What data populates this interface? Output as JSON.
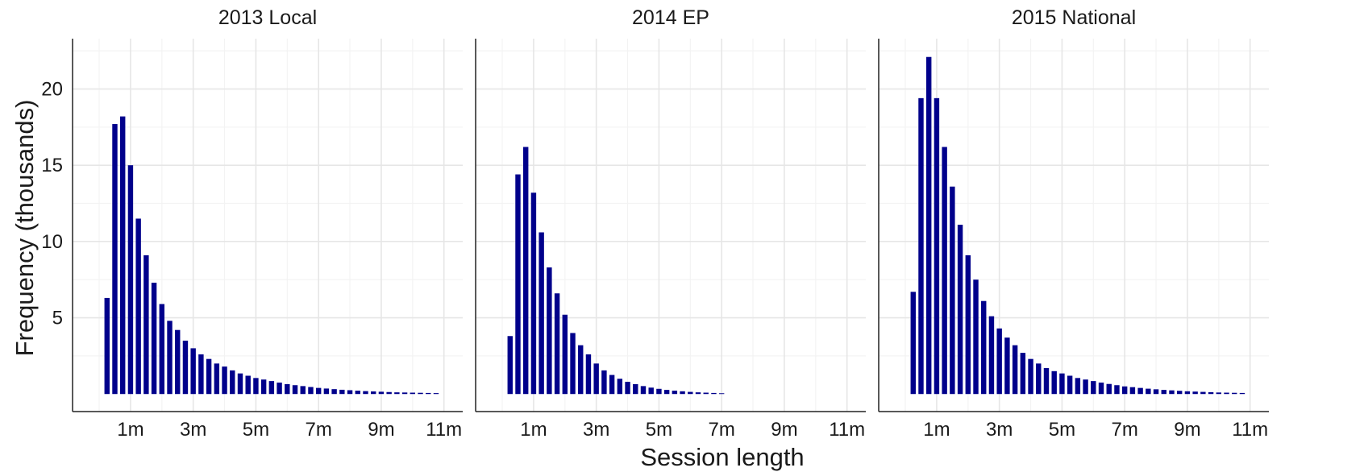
{
  "chart_data": {
    "type": "bar",
    "xlabel": "Session length",
    "ylabel": "Frequency (thousands)",
    "ylim": [
      -1.15,
      23.3
    ],
    "xlim": [
      -0.85,
      11.6
    ],
    "x_ticks": [
      1,
      3,
      5,
      7,
      9,
      11
    ],
    "x_tick_labels": [
      "1m",
      "3m",
      "5m",
      "7m",
      "9m",
      "11m"
    ],
    "y_ticks": [
      5,
      10,
      15,
      20
    ],
    "y_tick_labels": [
      "5",
      "10",
      "15",
      "20"
    ],
    "grid": true,
    "bar_color": "#00008b",
    "bin_width_minutes": 0.25,
    "panels": [
      {
        "title": "2013 Local",
        "x": [
          0.25,
          0.5,
          0.75,
          1,
          1.25,
          1.5,
          1.75,
          2,
          2.25,
          2.5,
          2.75,
          3,
          3.25,
          3.5,
          3.75,
          4,
          4.25,
          4.5,
          4.75,
          5,
          5.25,
          5.5,
          5.75,
          6,
          6.25,
          6.5,
          6.75,
          7,
          7.25,
          7.5,
          7.75,
          8,
          8.25,
          8.5,
          8.75,
          9,
          9.25,
          9.5,
          9.75,
          10,
          10.25,
          10.5,
          10.75
        ],
        "values": [
          6.3,
          17.7,
          18.2,
          15.0,
          11.5,
          9.1,
          7.3,
          5.9,
          4.8,
          4.2,
          3.5,
          3.0,
          2.6,
          2.3,
          2.0,
          1.8,
          1.55,
          1.35,
          1.2,
          1.05,
          0.95,
          0.85,
          0.75,
          0.65,
          0.58,
          0.52,
          0.46,
          0.4,
          0.36,
          0.32,
          0.28,
          0.25,
          0.22,
          0.19,
          0.17,
          0.15,
          0.13,
          0.11,
          0.1,
          0.09,
          0.08,
          0.07,
          0.06
        ]
      },
      {
        "title": "2014 EP",
        "x": [
          0.25,
          0.5,
          0.75,
          1,
          1.25,
          1.5,
          1.75,
          2,
          2.25,
          2.5,
          2.75,
          3,
          3.25,
          3.5,
          3.75,
          4,
          4.25,
          4.5,
          4.75,
          5,
          5.25,
          5.5,
          5.75,
          6,
          6.25,
          6.5,
          6.75,
          7
        ],
        "values": [
          3.8,
          14.4,
          16.2,
          13.2,
          10.6,
          8.3,
          6.6,
          5.2,
          4.0,
          3.2,
          2.6,
          2.0,
          1.55,
          1.25,
          1.0,
          0.8,
          0.65,
          0.52,
          0.42,
          0.34,
          0.27,
          0.22,
          0.18,
          0.14,
          0.11,
          0.09,
          0.07,
          0.05
        ]
      },
      {
        "title": "2015 National",
        "x": [
          0.25,
          0.5,
          0.75,
          1,
          1.25,
          1.5,
          1.75,
          2,
          2.25,
          2.5,
          2.75,
          3,
          3.25,
          3.5,
          3.75,
          4,
          4.25,
          4.5,
          4.75,
          5,
          5.25,
          5.5,
          5.75,
          6,
          6.25,
          6.5,
          6.75,
          7,
          7.25,
          7.5,
          7.75,
          8,
          8.25,
          8.5,
          8.75,
          9,
          9.25,
          9.5,
          9.75,
          10,
          10.25,
          10.5,
          10.75
        ],
        "values": [
          6.7,
          19.4,
          22.1,
          19.4,
          16.2,
          13.6,
          11.1,
          9.1,
          7.5,
          6.1,
          5.1,
          4.3,
          3.7,
          3.2,
          2.7,
          2.3,
          2.0,
          1.7,
          1.5,
          1.35,
          1.2,
          1.05,
          0.95,
          0.85,
          0.75,
          0.66,
          0.58,
          0.5,
          0.45,
          0.4,
          0.35,
          0.31,
          0.27,
          0.24,
          0.21,
          0.18,
          0.16,
          0.14,
          0.12,
          0.1,
          0.09,
          0.08,
          0.07
        ]
      }
    ]
  }
}
